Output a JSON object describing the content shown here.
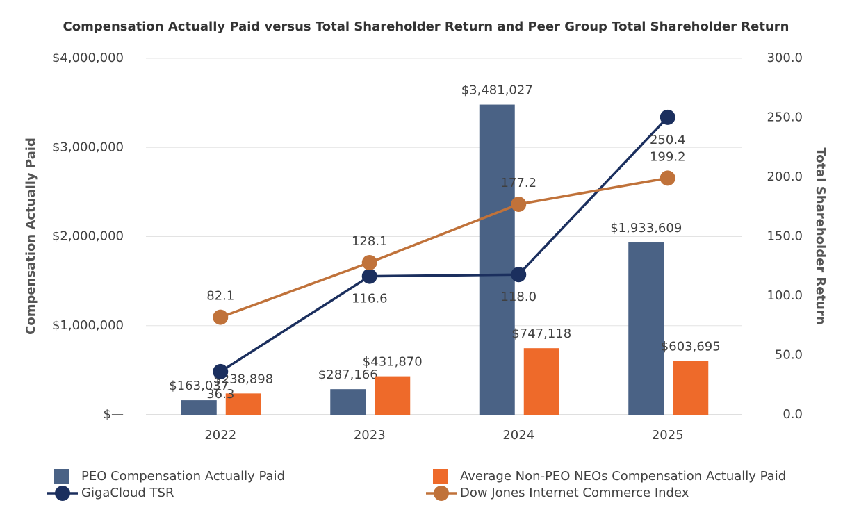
{
  "chart_data": {
    "type": "bar_line",
    "title": "Compensation Actually Paid versus Total Shareholder Return and Peer Group Total Shareholder Return",
    "y_label": "Compensation Actually Paid",
    "y2_label": "Total Shareholder Return",
    "categories": [
      "2022",
      "2023",
      "2024",
      "2025"
    ],
    "ylim": [
      0,
      4000000
    ],
    "yticks": [
      {
        "value": 0,
        "label": "$—"
      },
      {
        "value": 1000000,
        "label": "$1,000,000"
      },
      {
        "value": 2000000,
        "label": "$2,000,000"
      },
      {
        "value": 3000000,
        "label": "$3,000,000"
      },
      {
        "value": 4000000,
        "label": "$4,000,000"
      }
    ],
    "y2lim": [
      0,
      300
    ],
    "y2ticks": [
      {
        "value": 0,
        "label": "0.0"
      },
      {
        "value": 50,
        "label": "50.0"
      },
      {
        "value": 100,
        "label": "100.0"
      },
      {
        "value": 150,
        "label": "150.0"
      },
      {
        "value": 200,
        "label": "200.0"
      },
      {
        "value": 250,
        "label": "250.0"
      },
      {
        "value": 300,
        "label": "300.0"
      }
    ],
    "grid": true,
    "series": [
      {
        "name": "PEO Compensation Actually Paid",
        "kind": "bar",
        "color": "#4a6285",
        "values": [
          163037,
          287166,
          3481027,
          1933609
        ],
        "value_labels": [
          "$163,037",
          "$287,166",
          "$3,481,027",
          "$1,933,609"
        ]
      },
      {
        "name": "Average Non-PEO NEOs Compensation Actually Paid",
        "kind": "bar",
        "color": "#ee6a2a",
        "values": [
          238898,
          431870,
          747118,
          603695
        ],
        "value_labels": [
          "$238,898",
          "$431,870",
          "$747,118",
          "$603,695"
        ]
      },
      {
        "name": "GigaCloud TSR",
        "kind": "line",
        "axis": "y2",
        "color": "#1b2f5e",
        "values": [
          36.3,
          116.6,
          118.0,
          250.4
        ],
        "value_labels": [
          "36.3",
          "116.6",
          "118.0",
          "250.4"
        ]
      },
      {
        "name": "Dow Jones Internet Commerce Index",
        "kind": "line",
        "axis": "y2",
        "color": "#c0723a",
        "values": [
          82.1,
          128.1,
          177.2,
          199.2
        ],
        "value_labels": [
          "82.1",
          "128.1",
          "177.2",
          "199.2"
        ]
      }
    ]
  }
}
